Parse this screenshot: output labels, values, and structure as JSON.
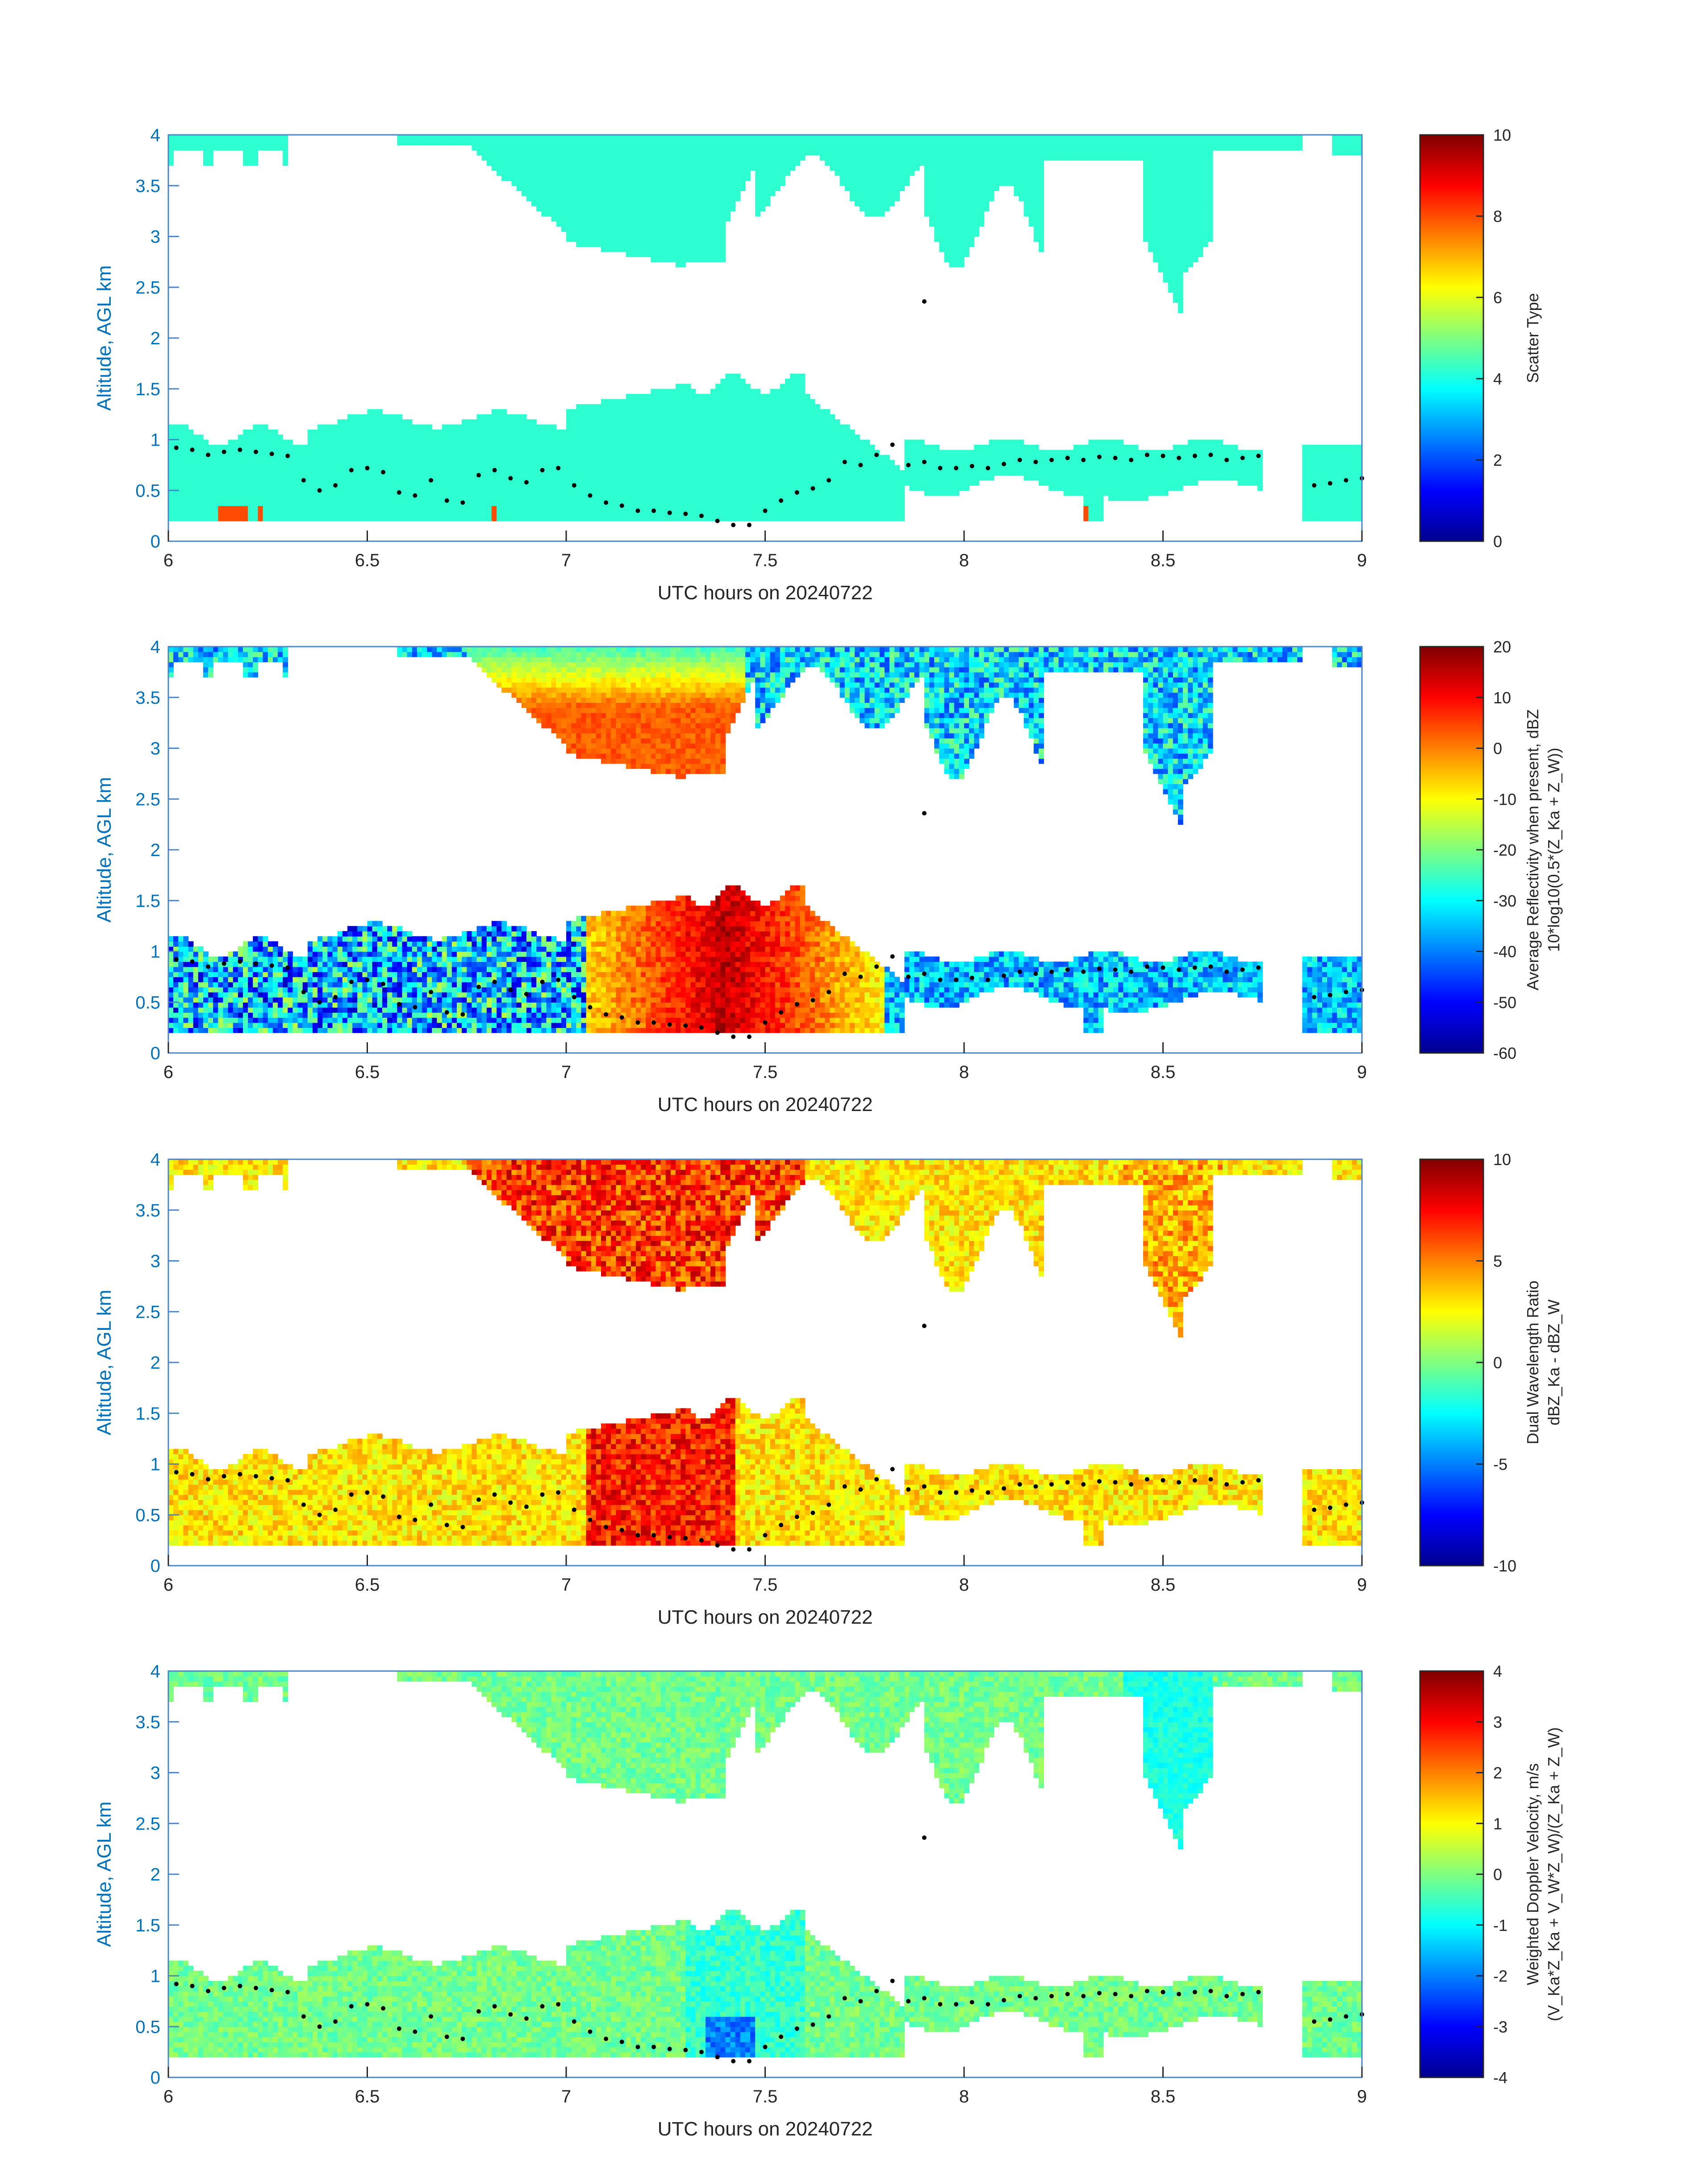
{
  "figure": {
    "xrange": [
      6,
      9
    ],
    "yrange": [
      0,
      4
    ],
    "xticks": [
      6,
      6.5,
      7,
      7.5,
      8,
      8.5,
      9
    ],
    "yticks": [
      0,
      0.5,
      1,
      1.5,
      2,
      2.5,
      3,
      3.5,
      4
    ]
  },
  "chart_data": [
    {
      "type": "heatmap",
      "ylabel": "Altitude, AGL km",
      "xlabel": "UTC hours on 20240722",
      "colorbar": {
        "label_line1": "Scatter Type",
        "label_line2": "",
        "range": [
          0,
          10
        ],
        "ticks": [
          0,
          2,
          4,
          6,
          8,
          10
        ]
      },
      "dominant_value": 4.2,
      "secondary_value": 8.0
    },
    {
      "type": "heatmap",
      "ylabel": "Altitude, AGL km",
      "xlabel": "UTC hours on 20240722",
      "colorbar": {
        "label_line1": "Average Reflectivity when present, dBZ",
        "label_line2": "10*log10(0.5*(Z_Ka + Z_W))",
        "range": [
          -60,
          20
        ],
        "ticks": [
          -60,
          -50,
          -40,
          -30,
          -20,
          -10,
          0,
          10,
          20
        ]
      },
      "upper_layer_peak": 5,
      "lower_layer_peak": 15
    },
    {
      "type": "heatmap",
      "ylabel": "Altitude, AGL km",
      "xlabel": "UTC hours on 20240722",
      "colorbar": {
        "label_line1": "Dual Wavelength Ratio",
        "label_line2": "dBZ_Ka - dBZ_W",
        "range": [
          -10,
          10
        ],
        "ticks": [
          -10,
          -5,
          0,
          5,
          10
        ]
      },
      "upper_layer_peak": 9,
      "lower_layer_peak": 9
    },
    {
      "type": "heatmap",
      "ylabel": "Altitude, AGL km",
      "xlabel": "UTC hours on 20240722",
      "colorbar": {
        "label_line1": "Weighted Doppler Velocity, m/s",
        "label_line2": "(V_Ka*Z_Ka + V_W*Z_W)/(Z_Ka + Z_W)",
        "range": [
          -4,
          4
        ],
        "ticks": [
          -4,
          -3,
          -2,
          -1,
          0,
          1,
          2,
          3,
          4
        ]
      },
      "typical_value": -0.3,
      "min_value": -2.5
    }
  ],
  "cloud_base_dots": {
    "x": [
      6.02,
      6.06,
      6.1,
      6.14,
      6.18,
      6.22,
      6.26,
      6.3,
      6.34,
      6.38,
      6.42,
      6.46,
      6.5,
      6.54,
      6.58,
      6.62,
      6.66,
      6.7,
      6.74,
      6.78,
      6.82,
      6.86,
      6.9,
      6.94,
      6.98,
      7.02,
      7.06,
      7.1,
      7.14,
      7.18,
      7.22,
      7.26,
      7.3,
      7.34,
      7.38,
      7.42,
      7.46,
      7.5,
      7.54,
      7.58,
      7.62,
      7.66,
      7.7,
      7.74,
      7.78,
      7.82,
      7.86,
      7.9,
      7.94,
      7.98,
      8.02,
      8.06,
      8.1,
      8.14,
      8.18,
      8.22,
      8.26,
      8.3,
      8.34,
      8.38,
      8.42,
      8.46,
      8.5,
      8.54,
      8.58,
      8.62,
      8.66,
      8.7,
      8.74,
      8.88,
      8.92,
      8.96,
      9.0
    ],
    "y": [
      0.92,
      0.9,
      0.85,
      0.88,
      0.9,
      0.88,
      0.86,
      0.84,
      0.6,
      0.5,
      0.55,
      0.7,
      0.72,
      0.68,
      0.48,
      0.45,
      0.6,
      0.4,
      0.38,
      0.65,
      0.7,
      0.62,
      0.58,
      0.7,
      0.72,
      0.55,
      0.45,
      0.38,
      0.35,
      0.3,
      0.3,
      0.28,
      0.27,
      0.25,
      0.2,
      0.16,
      0.16,
      0.3,
      0.4,
      0.48,
      0.52,
      0.6,
      0.78,
      0.75,
      0.85,
      0.95,
      0.75,
      0.78,
      0.72,
      0.72,
      0.74,
      0.72,
      0.76,
      0.8,
      0.78,
      0.8,
      0.82,
      0.8,
      0.83,
      0.82,
      0.8,
      0.85,
      0.84,
      0.82,
      0.84,
      0.85,
      0.8,
      0.82,
      0.84,
      0.55,
      0.57,
      0.6,
      0.62
    ]
  }
}
